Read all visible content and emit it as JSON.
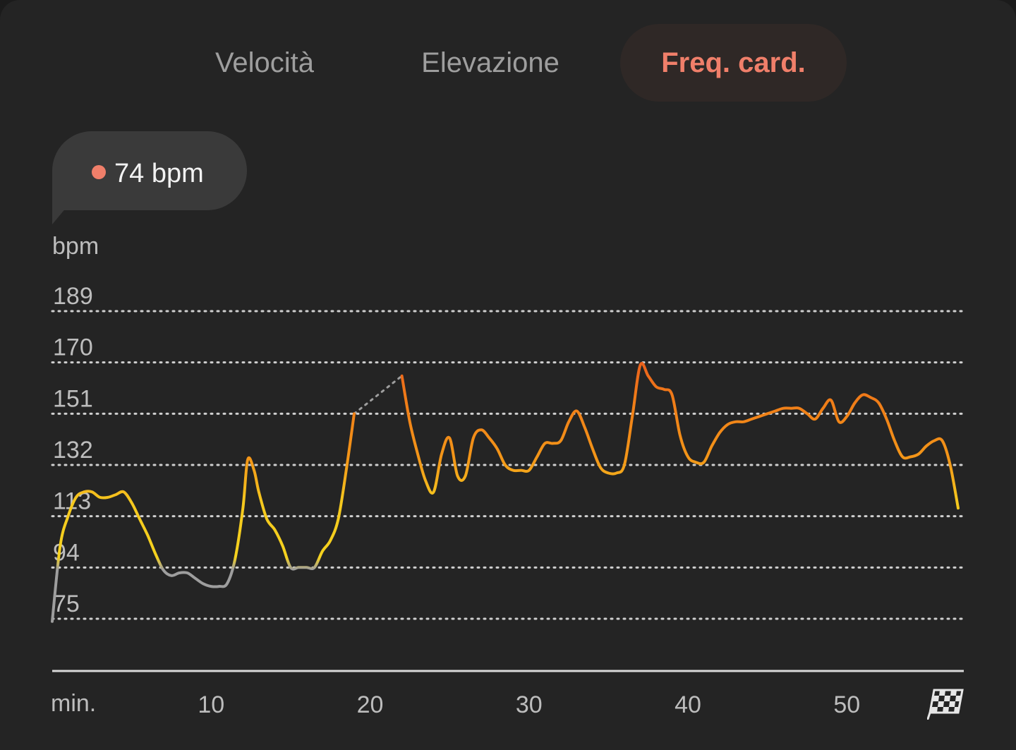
{
  "tabs": [
    {
      "label": "Velocità",
      "active": false
    },
    {
      "label": "Elevazione",
      "active": false
    },
    {
      "label": "Freq. card.",
      "active": true
    }
  ],
  "tooltip": {
    "value_text": "74 bpm",
    "dot_color": "#f07f6a"
  },
  "finish_icon": "checkered-flag-icon",
  "colors": {
    "accent": "#f07f6a",
    "zone_gray": "#9e9e9e",
    "zone_yellow": "#f5d21e",
    "zone_orange": "#f08a15",
    "zone_red": "#e8521f"
  },
  "chart_data": {
    "type": "line",
    "ylabel": "bpm",
    "xlabel": "min.",
    "y_ticks": [
      189,
      170,
      151,
      132,
      113,
      94,
      75
    ],
    "x_ticks": [
      10,
      20,
      30,
      40,
      50
    ],
    "ylim": [
      75,
      189
    ],
    "xlim": [
      0,
      57
    ],
    "grid": true,
    "gap": {
      "from_x": 19.0,
      "to_x": 22.0
    },
    "series": [
      {
        "points": [
          [
            0,
            74
          ],
          [
            0.5,
            102
          ],
          [
            1,
            113
          ],
          [
            1.5,
            120
          ],
          [
            2,
            122
          ],
          [
            2.5,
            122
          ],
          [
            3,
            120
          ],
          [
            3.5,
            120
          ],
          [
            4,
            121
          ],
          [
            4.5,
            122
          ],
          [
            5,
            118
          ],
          [
            5.5,
            112
          ],
          [
            6,
            106
          ],
          [
            6.5,
            99
          ],
          [
            7,
            93
          ],
          [
            7.5,
            91
          ],
          [
            8,
            92
          ],
          [
            8.5,
            92
          ],
          [
            9,
            90
          ],
          [
            9.5,
            88
          ],
          [
            10,
            87
          ],
          [
            10.5,
            87
          ],
          [
            11,
            88
          ],
          [
            11.5,
            97
          ],
          [
            12,
            116
          ],
          [
            12.3,
            134
          ],
          [
            12.7,
            130
          ],
          [
            13,
            122
          ],
          [
            13.5,
            112
          ],
          [
            14,
            108
          ],
          [
            14.5,
            102
          ],
          [
            15,
            94
          ],
          [
            15.5,
            94
          ],
          [
            16,
            94
          ],
          [
            16.5,
            94
          ],
          [
            17,
            100
          ],
          [
            17.5,
            104
          ],
          [
            18,
            112
          ],
          [
            18.5,
            130
          ],
          [
            19,
            151
          ]
        ]
      },
      {
        "points": [
          [
            22,
            165
          ],
          [
            22.5,
            148
          ],
          [
            23,
            136
          ],
          [
            23.5,
            126
          ],
          [
            24,
            122
          ],
          [
            24.5,
            136
          ],
          [
            25,
            142
          ],
          [
            25.5,
            128
          ],
          [
            26,
            128
          ],
          [
            26.5,
            142
          ],
          [
            27,
            145
          ],
          [
            27.5,
            142
          ],
          [
            28,
            138
          ],
          [
            28.5,
            132
          ],
          [
            29,
            130
          ],
          [
            29.5,
            130
          ],
          [
            30,
            130
          ],
          [
            30.5,
            135
          ],
          [
            31,
            140
          ],
          [
            31.5,
            140
          ],
          [
            32,
            141
          ],
          [
            32.5,
            148
          ],
          [
            33,
            152
          ],
          [
            33.5,
            146
          ],
          [
            34,
            138
          ],
          [
            34.5,
            131
          ],
          [
            35,
            129
          ],
          [
            35.5,
            129
          ],
          [
            36,
            132
          ],
          [
            36.5,
            150
          ],
          [
            37,
            169
          ],
          [
            37.5,
            165
          ],
          [
            38,
            161
          ],
          [
            38.5,
            160
          ],
          [
            39,
            158
          ],
          [
            39.5,
            143
          ],
          [
            40,
            135
          ],
          [
            40.5,
            133
          ],
          [
            41,
            133
          ],
          [
            41.5,
            139
          ],
          [
            42,
            144
          ],
          [
            42.5,
            147
          ],
          [
            43,
            148
          ],
          [
            43.5,
            148
          ],
          [
            44,
            149
          ],
          [
            44.5,
            150
          ],
          [
            45,
            151
          ],
          [
            45.5,
            152
          ],
          [
            46,
            153
          ],
          [
            46.5,
            153
          ],
          [
            47,
            153
          ],
          [
            47.5,
            151
          ],
          [
            48,
            149
          ],
          [
            48.5,
            153
          ],
          [
            49,
            156
          ],
          [
            49.5,
            148
          ],
          [
            50,
            150
          ],
          [
            50.5,
            155
          ],
          [
            51,
            158
          ],
          [
            51.5,
            157
          ],
          [
            52,
            155
          ],
          [
            52.5,
            149
          ],
          [
            53,
            141
          ],
          [
            53.5,
            135
          ],
          [
            54,
            135
          ],
          [
            54.5,
            136
          ],
          [
            55,
            139
          ],
          [
            55.5,
            141
          ],
          [
            56,
            141
          ],
          [
            56.5,
            132
          ],
          [
            57,
            116
          ]
        ]
      }
    ]
  }
}
